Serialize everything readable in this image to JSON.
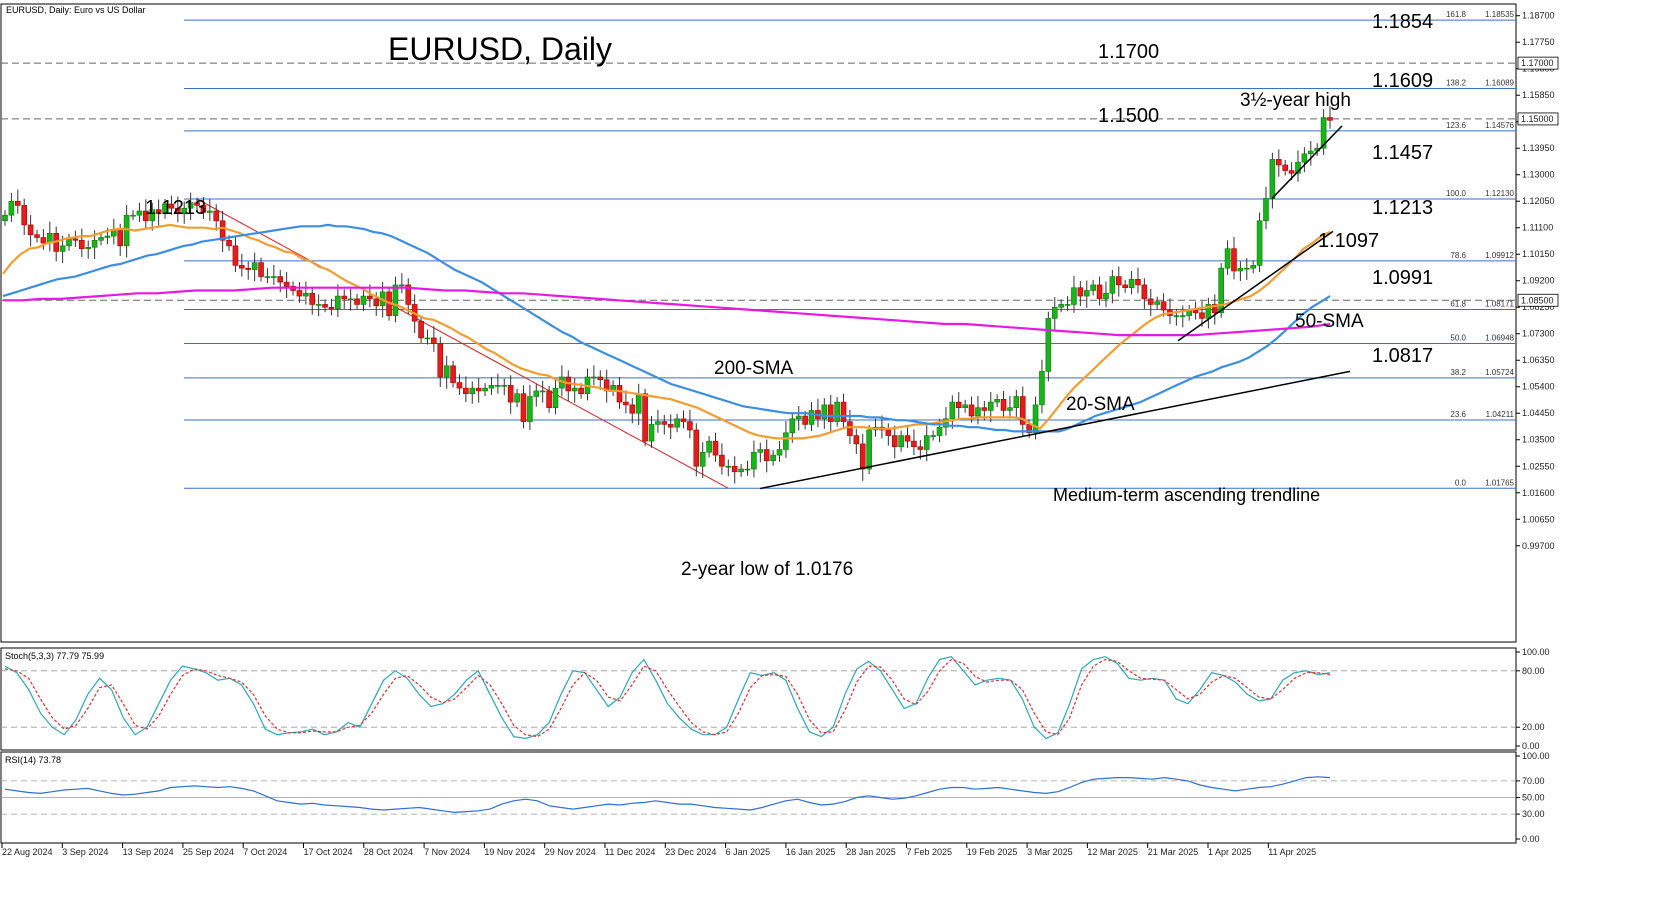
{
  "chart_data": [
    {
      "type": "candlestick",
      "id": "main",
      "header": "EURUSD, Daily:  Euro vs US Dollar",
      "title": "EURUSD, Daily",
      "ylim": [
        0.9625,
        1.1912
      ],
      "y_ticks": [
        "1.18700",
        "1.17750",
        "1.16800",
        "1.15850",
        "1.14900",
        "1.13950",
        "1.13000",
        "1.12050",
        "1.11100",
        "1.10150",
        "1.09200",
        "1.08250",
        "1.07300",
        "1.06350",
        "1.05400",
        "1.04450",
        "1.03500",
        "1.02550",
        "1.01600",
        "1.00650",
        "0.99700"
      ],
      "x_labels": [
        "22 Aug 2024",
        "3 Sep 2024",
        "13 Sep 2024",
        "25 Sep 2024",
        "7 Oct 2024",
        "17 Oct 2024",
        "28 Oct 2024",
        "7 Nov 2024",
        "19 Nov 2024",
        "29 Nov 2024",
        "11 Dec 2024",
        "23 Dec 2024",
        "6 Jan 2025",
        "16 Jan 2025",
        "28 Jan 2025",
        "7 Feb 2025",
        "19 Feb 2025",
        "3 Mar 2025",
        "12 Mar 2025",
        "21 Mar 2025",
        "1 Apr 2025",
        "11 Apr 2025"
      ],
      "price_tags": [
        "1.17000",
        "1.15000",
        "1.08500"
      ],
      "close": [
        1.1155,
        1.1205,
        1.119,
        1.112,
        1.1085,
        1.1075,
        1.1055,
        1.109,
        1.1025,
        1.1045,
        1.107,
        1.1065,
        1.1035,
        1.104,
        1.1065,
        1.1075,
        1.108,
        1.11,
        1.1045,
        1.1155,
        1.1155,
        1.117,
        1.1135,
        1.1175,
        1.116,
        1.1195,
        1.118,
        1.116,
        1.118,
        1.12,
        1.119,
        1.1165,
        1.117,
        1.1135,
        1.1065,
        1.1045,
        1.0975,
        1.0965,
        1.096,
        1.0985,
        1.0935,
        1.0935,
        1.0935,
        1.0915,
        1.09,
        1.0885,
        1.0865,
        1.0875,
        1.0835,
        1.0835,
        1.0825,
        1.082,
        1.0865,
        1.0855,
        1.0855,
        1.0835,
        1.0865,
        1.0855,
        1.083,
        1.088,
        1.0795,
        1.0905,
        1.0905,
        1.0835,
        1.0775,
        1.0715,
        1.0715,
        1.0695,
        1.0575,
        1.0615,
        1.0555,
        1.0535,
        1.0515,
        1.0535,
        1.0525,
        1.0535,
        1.0545,
        1.0545,
        1.0545,
        1.0485,
        1.0515,
        1.0415,
        1.0505,
        1.0525,
        1.0525,
        1.0465,
        1.0535,
        1.0575,
        1.0525,
        1.0535,
        1.0515,
        1.0575,
        1.0575,
        1.0565,
        1.0525,
        1.0545,
        1.0485,
        1.0475,
        1.0445,
        1.0515,
        1.0345,
        1.0405,
        1.0415,
        1.0405,
        1.0395,
        1.0425,
        1.0415,
        1.0385,
        1.0255,
        1.0305,
        1.0345,
        1.0295,
        1.0255,
        1.0255,
        1.0235,
        1.0245,
        1.0245,
        1.0305,
        1.0315,
        1.0275,
        1.0295,
        1.0315,
        1.0375,
        1.0425,
        1.0435,
        1.0405,
        1.0455,
        1.0425,
        1.0475,
        1.0415,
        1.0485,
        1.0415,
        1.0365,
        1.0335,
        1.0245,
        1.0385,
        1.0395,
        1.0385,
        1.0365,
        1.0325,
        1.0365,
        1.0345,
        1.0325,
        1.0315,
        1.0365,
        1.0365,
        1.0395,
        1.0425,
        1.0485,
        1.0465,
        1.0475,
        1.0435,
        1.0465,
        1.0455,
        1.0485,
        1.0495,
        1.0455,
        1.0465,
        1.0505,
        1.0405,
        1.0375,
        1.0475,
        1.0595,
        1.0785,
        1.0825,
        1.0835,
        1.0835,
        1.0895,
        1.0865,
        1.0885,
        1.0905,
        1.0855,
        1.0875,
        1.0935,
        1.0905,
        1.0895,
        1.0925,
        1.0905,
        1.0855,
        1.0835,
        1.0845,
        1.0815,
        1.0795,
        1.0795,
        1.0795,
        1.0815,
        1.0805,
        1.0785,
        1.0835,
        1.0805,
        1.0965,
        1.1035,
        1.0955,
        1.0965,
        1.0965,
        1.0975,
        1.1135,
        1.1215,
        1.1355,
        1.1335,
        1.1315,
        1.1305,
        1.1345,
        1.1375,
        1.1385,
        1.1395,
        1.1505,
        1.1495
      ],
      "series": [
        {
          "name": "20-SMA",
          "color": "#f39c2f",
          "values": [
            1.0945,
            1.0985,
            1.1015,
            1.1035,
            1.104,
            1.1055,
            1.106,
            1.107,
            1.1075,
            1.108,
            1.108,
            1.109,
            1.11,
            1.1105,
            1.1105,
            1.11,
            1.1105,
            1.111,
            1.1115,
            1.112,
            1.1115,
            1.111,
            1.111,
            1.111,
            1.1105,
            1.111,
            1.11,
            1.109,
            1.1075,
            1.1065,
            1.105,
            1.104,
            1.1025,
            1.102,
            1.1,
            1.099,
            1.097,
            1.096,
            1.094,
            1.092,
            1.0905,
            1.089,
            1.087,
            1.0855,
            1.084,
            1.083,
            1.0815,
            1.08,
            1.0785,
            1.078,
            1.0765,
            1.075,
            1.073,
            1.0715,
            1.0695,
            1.0675,
            1.066,
            1.064,
            1.062,
            1.0605,
            1.0595,
            1.0585,
            1.058,
            1.0565,
            1.0555,
            1.055,
            1.0545,
            1.054,
            1.0535,
            1.0525,
            1.0525,
            1.052,
            1.0515,
            1.051,
            1.0505,
            1.05,
            1.0495,
            1.0485,
            1.0475,
            1.0465,
            1.045,
            1.0435,
            1.042,
            1.0405,
            1.039,
            1.0375,
            1.0365,
            1.036,
            1.0355,
            1.0355,
            1.0355,
            1.0355,
            1.036,
            1.0365,
            1.0375,
            1.0385,
            1.0395,
            1.0395,
            1.0395,
            1.039,
            1.039,
            1.039,
            1.0395,
            1.04,
            1.0405,
            1.0405,
            1.041,
            1.0415,
            1.042,
            1.0425,
            1.0425,
            1.043,
            1.043,
            1.043,
            1.043,
            1.043,
            1.0425,
            1.0405,
            1.039,
            1.0425,
            1.0465,
            1.0505,
            1.054,
            1.057,
            1.06,
            1.063,
            1.066,
            1.069,
            1.0715,
            1.074,
            1.0765,
            1.0785,
            1.08,
            1.0805,
            1.081,
            1.0815,
            1.082,
            1.0825,
            1.083,
            1.0835,
            1.0845,
            1.0855,
            1.0865,
            1.0885,
            1.091,
            1.094,
            1.097,
            1.1,
            1.1035,
            1.1055,
            1.108,
            1.1095
          ]
        },
        {
          "name": "50-SMA",
          "color": "#3c8ee0",
          "values": [
            1.0865,
            1.0875,
            1.0885,
            1.0895,
            1.0905,
            1.0915,
            1.0925,
            1.093,
            1.0935,
            1.0945,
            1.0955,
            1.0965,
            1.0975,
            1.098,
            1.099,
            1.1,
            1.101,
            1.1015,
            1.1025,
            1.1035,
            1.1045,
            1.105,
            1.106,
            1.1065,
            1.107,
            1.1075,
            1.108,
            1.1085,
            1.109,
            1.1095,
            1.11,
            1.1105,
            1.111,
            1.1115,
            1.1115,
            1.1115,
            1.112,
            1.1115,
            1.1115,
            1.111,
            1.1105,
            1.1095,
            1.109,
            1.108,
            1.1065,
            1.105,
            1.1035,
            1.102,
            1.1,
            1.098,
            1.096,
            1.0945,
            1.093,
            1.0915,
            1.0895,
            1.0875,
            1.0855,
            1.0835,
            1.0815,
            1.0795,
            1.0775,
            1.0755,
            1.0735,
            1.072,
            1.07,
            1.0685,
            1.067,
            1.0655,
            1.064,
            1.0625,
            1.061,
            1.0595,
            1.058,
            1.0565,
            1.055,
            1.054,
            1.053,
            1.052,
            1.051,
            1.05,
            1.049,
            1.048,
            1.047,
            1.0465,
            1.046,
            1.0455,
            1.045,
            1.0445,
            1.0445,
            1.0445,
            1.044,
            1.0435,
            1.0435,
            1.0435,
            1.0435,
            1.0435,
            1.043,
            1.043,
            1.0425,
            1.042,
            1.042,
            1.0415,
            1.041,
            1.0405,
            1.0405,
            1.04,
            1.04,
            1.0395,
            1.0395,
            1.039,
            1.0385,
            1.0385,
            1.038,
            1.038,
            1.038,
            1.038,
            1.038,
            1.038,
            1.039,
            1.0405,
            1.042,
            1.0435,
            1.0445,
            1.0455,
            1.0465,
            1.0475,
            1.0485,
            1.05,
            1.0515,
            1.053,
            1.0545,
            1.056,
            1.0575,
            1.0585,
            1.0595,
            1.061,
            1.062,
            1.063,
            1.0645,
            1.0665,
            1.0685,
            1.071,
            1.074,
            1.077,
            1.08,
            1.0825,
            1.0845,
            1.0865
          ]
        },
        {
          "name": "200-SMA",
          "color": "#e619e6",
          "values": [
            1.085,
            1.085,
            1.0855,
            1.0855,
            1.086,
            1.0865,
            1.087,
            1.0875,
            1.0875,
            1.088,
            1.0885,
            1.0885,
            1.0885,
            1.089,
            1.0895,
            1.0895,
            1.0895,
            1.0895,
            1.0895,
            1.0895,
            1.0895,
            1.0895,
            1.089,
            1.0885,
            1.0885,
            1.088,
            1.0875,
            1.0875,
            1.087,
            1.0865,
            1.086,
            1.0855,
            1.085,
            1.0845,
            1.084,
            1.0835,
            1.083,
            1.0825,
            1.082,
            1.0815,
            1.081,
            1.0805,
            1.08,
            1.0795,
            1.079,
            1.0785,
            1.078,
            1.0775,
            1.077,
            1.0765,
            1.0765,
            1.076,
            1.0755,
            1.075,
            1.0745,
            1.074,
            1.0735,
            1.073,
            1.0725,
            1.0725,
            1.0725,
            1.0725,
            1.0725,
            1.073,
            1.0735,
            1.074,
            1.0745,
            1.075,
            1.0755,
            1.0765
          ]
        }
      ],
      "fibonacci": [
        {
          "label": "161.8",
          "price": "1.18535",
          "y": 1.1854
        },
        {
          "label": "138.2",
          "price": "1.16089",
          "y": 1.1609
        },
        {
          "label": "123.6",
          "price": "1.14576",
          "y": 1.1457
        },
        {
          "label": "100.0",
          "price": "1.12130",
          "y": 1.1213
        },
        {
          "label": "78.6",
          "price": "1.09912",
          "y": 1.0991
        },
        {
          "label": "61.8",
          "price": "1.08171",
          "y": 1.0817
        },
        {
          "label": "50.0",
          "price": "1.06948",
          "y": 1.0695
        },
        {
          "label": "38.2",
          "price": "1.05724",
          "y": 1.0572
        },
        {
          "label": "23.6",
          "price": "1.04211",
          "y": 1.0421
        },
        {
          "label": "0.0",
          "price": "1.01765",
          "y": 1.0176
        }
      ],
      "annotations": [
        "1.1854",
        "1.1700",
        "1.1609",
        "3½-year high",
        "1.1500",
        "1.1457",
        "1.1213",
        "1.1213",
        "1.1097",
        "1.0991",
        "50-SMA",
        "1.0817",
        "200-SMA",
        "20-SMA",
        "Medium-term ascending trendline",
        "2-year low of 1.0176"
      ]
    },
    {
      "type": "line",
      "id": "stoch",
      "header": "Stoch(5,3,3) 77.79 75.99",
      "ylim": [
        0,
        100
      ],
      "y_ticks": [
        "100.00",
        "80.00",
        "20.00",
        "0.00"
      ],
      "series": [
        {
          "name": "%K",
          "color": "#2aa7b8",
          "values": [
            85,
            78,
            60,
            35,
            20,
            12,
            28,
            55,
            72,
            60,
            30,
            12,
            20,
            45,
            70,
            85,
            82,
            78,
            70,
            72,
            65,
            45,
            18,
            12,
            14,
            15,
            18,
            12,
            15,
            25,
            20,
            45,
            70,
            80,
            72,
            55,
            42,
            45,
            55,
            70,
            80,
            55,
            30,
            10,
            8,
            12,
            25,
            55,
            80,
            78,
            60,
            42,
            52,
            78,
            92,
            70,
            45,
            30,
            18,
            12,
            12,
            20,
            50,
            78,
            75,
            78,
            70,
            40,
            15,
            10,
            20,
            55,
            82,
            90,
            80,
            60,
            40,
            45,
            72,
            92,
            95,
            80,
            65,
            70,
            72,
            70,
            50,
            20,
            8,
            14,
            45,
            82,
            92,
            95,
            88,
            72,
            70,
            72,
            70,
            50,
            45,
            60,
            78,
            75,
            68,
            55,
            48,
            50,
            70,
            78,
            80,
            76,
            78
          ]
        },
        {
          "name": "%D",
          "color": "#e03030",
          "values": [
            82,
            80,
            72,
            50,
            30,
            18,
            22,
            40,
            62,
            65,
            45,
            22,
            18,
            32,
            55,
            75,
            82,
            80,
            75,
            72,
            68,
            55,
            32,
            18,
            14,
            14,
            16,
            15,
            15,
            20,
            22,
            35,
            55,
            72,
            75,
            65,
            52,
            46,
            50,
            62,
            75,
            65,
            45,
            22,
            12,
            10,
            18,
            40,
            65,
            78,
            70,
            52,
            48,
            65,
            85,
            80,
            60,
            42,
            25,
            15,
            12,
            15,
            35,
            62,
            75,
            76,
            74,
            55,
            28,
            14,
            15,
            38,
            68,
            85,
            84,
            70,
            50,
            44,
            58,
            80,
            92,
            88,
            74,
            68,
            70,
            70,
            60,
            35,
            15,
            12,
            30,
            65,
            85,
            92,
            90,
            80,
            72,
            71,
            70,
            60,
            50,
            55,
            68,
            75,
            72,
            62,
            52,
            50,
            60,
            72,
            78,
            78,
            76
          ]
        }
      ]
    },
    {
      "type": "line",
      "id": "rsi",
      "header": "RSI(14) 73.78",
      "ylim": [
        0,
        100
      ],
      "y_ticks": [
        "100.00",
        "70.00",
        "50.00",
        "30.00",
        "0.00"
      ],
      "series": [
        {
          "name": "RSI",
          "color": "#2f6fd0",
          "values": [
            60,
            58,
            56,
            55,
            57,
            59,
            60,
            61,
            58,
            55,
            53,
            54,
            56,
            58,
            62,
            63,
            64,
            63,
            62,
            63,
            61,
            58,
            52,
            46,
            44,
            42,
            43,
            41,
            40,
            39,
            38,
            36,
            35,
            36,
            37,
            38,
            36,
            34,
            32,
            33,
            34,
            36,
            42,
            46,
            48,
            46,
            40,
            38,
            36,
            38,
            40,
            42,
            41,
            43,
            44,
            46,
            44,
            42,
            42,
            40,
            38,
            37,
            36,
            35,
            38,
            42,
            46,
            48,
            44,
            41,
            42,
            45,
            50,
            52,
            50,
            48,
            49,
            52,
            56,
            60,
            62,
            62,
            60,
            61,
            62,
            60,
            58,
            56,
            55,
            57,
            62,
            68,
            72,
            73,
            74,
            74,
            73,
            72,
            74,
            72,
            70,
            65,
            62,
            60,
            58,
            60,
            62,
            63,
            66,
            70,
            74,
            75,
            74
          ]
        }
      ]
    }
  ]
}
